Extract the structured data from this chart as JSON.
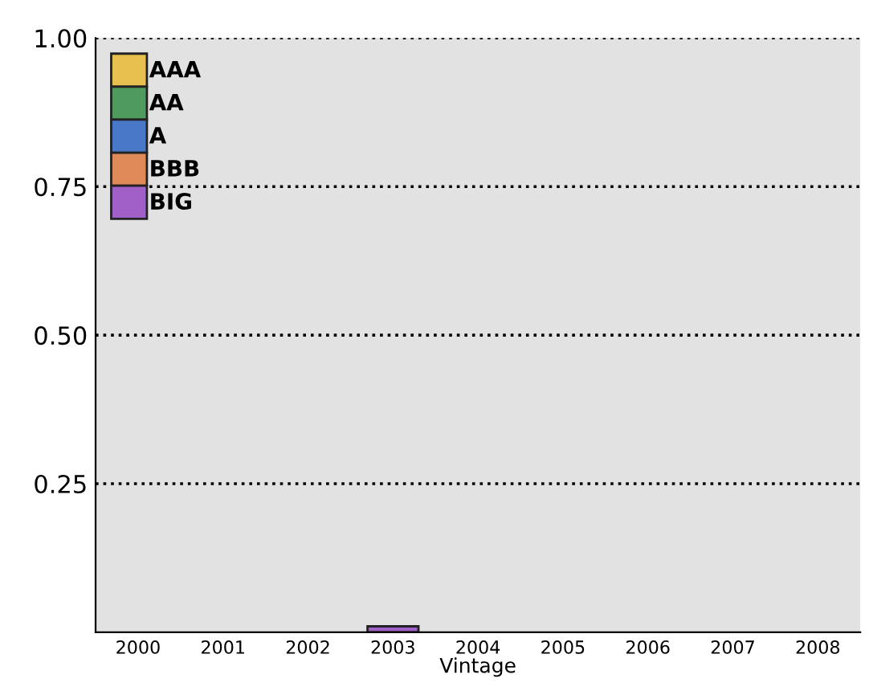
{
  "chart_data": {
    "type": "bar",
    "xlabel": "Vintage",
    "categories": [
      "2000",
      "2001",
      "2002",
      "2003",
      "2004",
      "2005",
      "2006",
      "2007",
      "2008"
    ],
    "series": [
      {
        "name": "BIG",
        "color": "#a060c8",
        "values": [
          0,
          0,
          0,
          0.01,
          0,
          0,
          0,
          0,
          0
        ]
      },
      {
        "name": "BBB",
        "color": "#e08a5a",
        "values": [
          0,
          0,
          0,
          0,
          0,
          0,
          0,
          0,
          0
        ]
      },
      {
        "name": "A",
        "color": "#4a78c8",
        "values": [
          0,
          0,
          0,
          0,
          0,
          0,
          0,
          0,
          0
        ]
      },
      {
        "name": "AA",
        "color": "#4f9a5f",
        "values": [
          0,
          0,
          0,
          0,
          0,
          0,
          0,
          0,
          0
        ]
      },
      {
        "name": "AAA",
        "color": "#e8c050",
        "values": [
          0,
          0,
          0,
          0,
          0,
          0,
          0,
          0,
          0
        ]
      }
    ],
    "ylim": [
      0,
      1
    ],
    "yticks": [
      0.25,
      {
        "value": 0.5,
        "label": "0.50"
      },
      0.75,
      {
        "value": 1,
        "label": "1.00"
      }
    ],
    "grid": "y",
    "legend": "top left"
  }
}
